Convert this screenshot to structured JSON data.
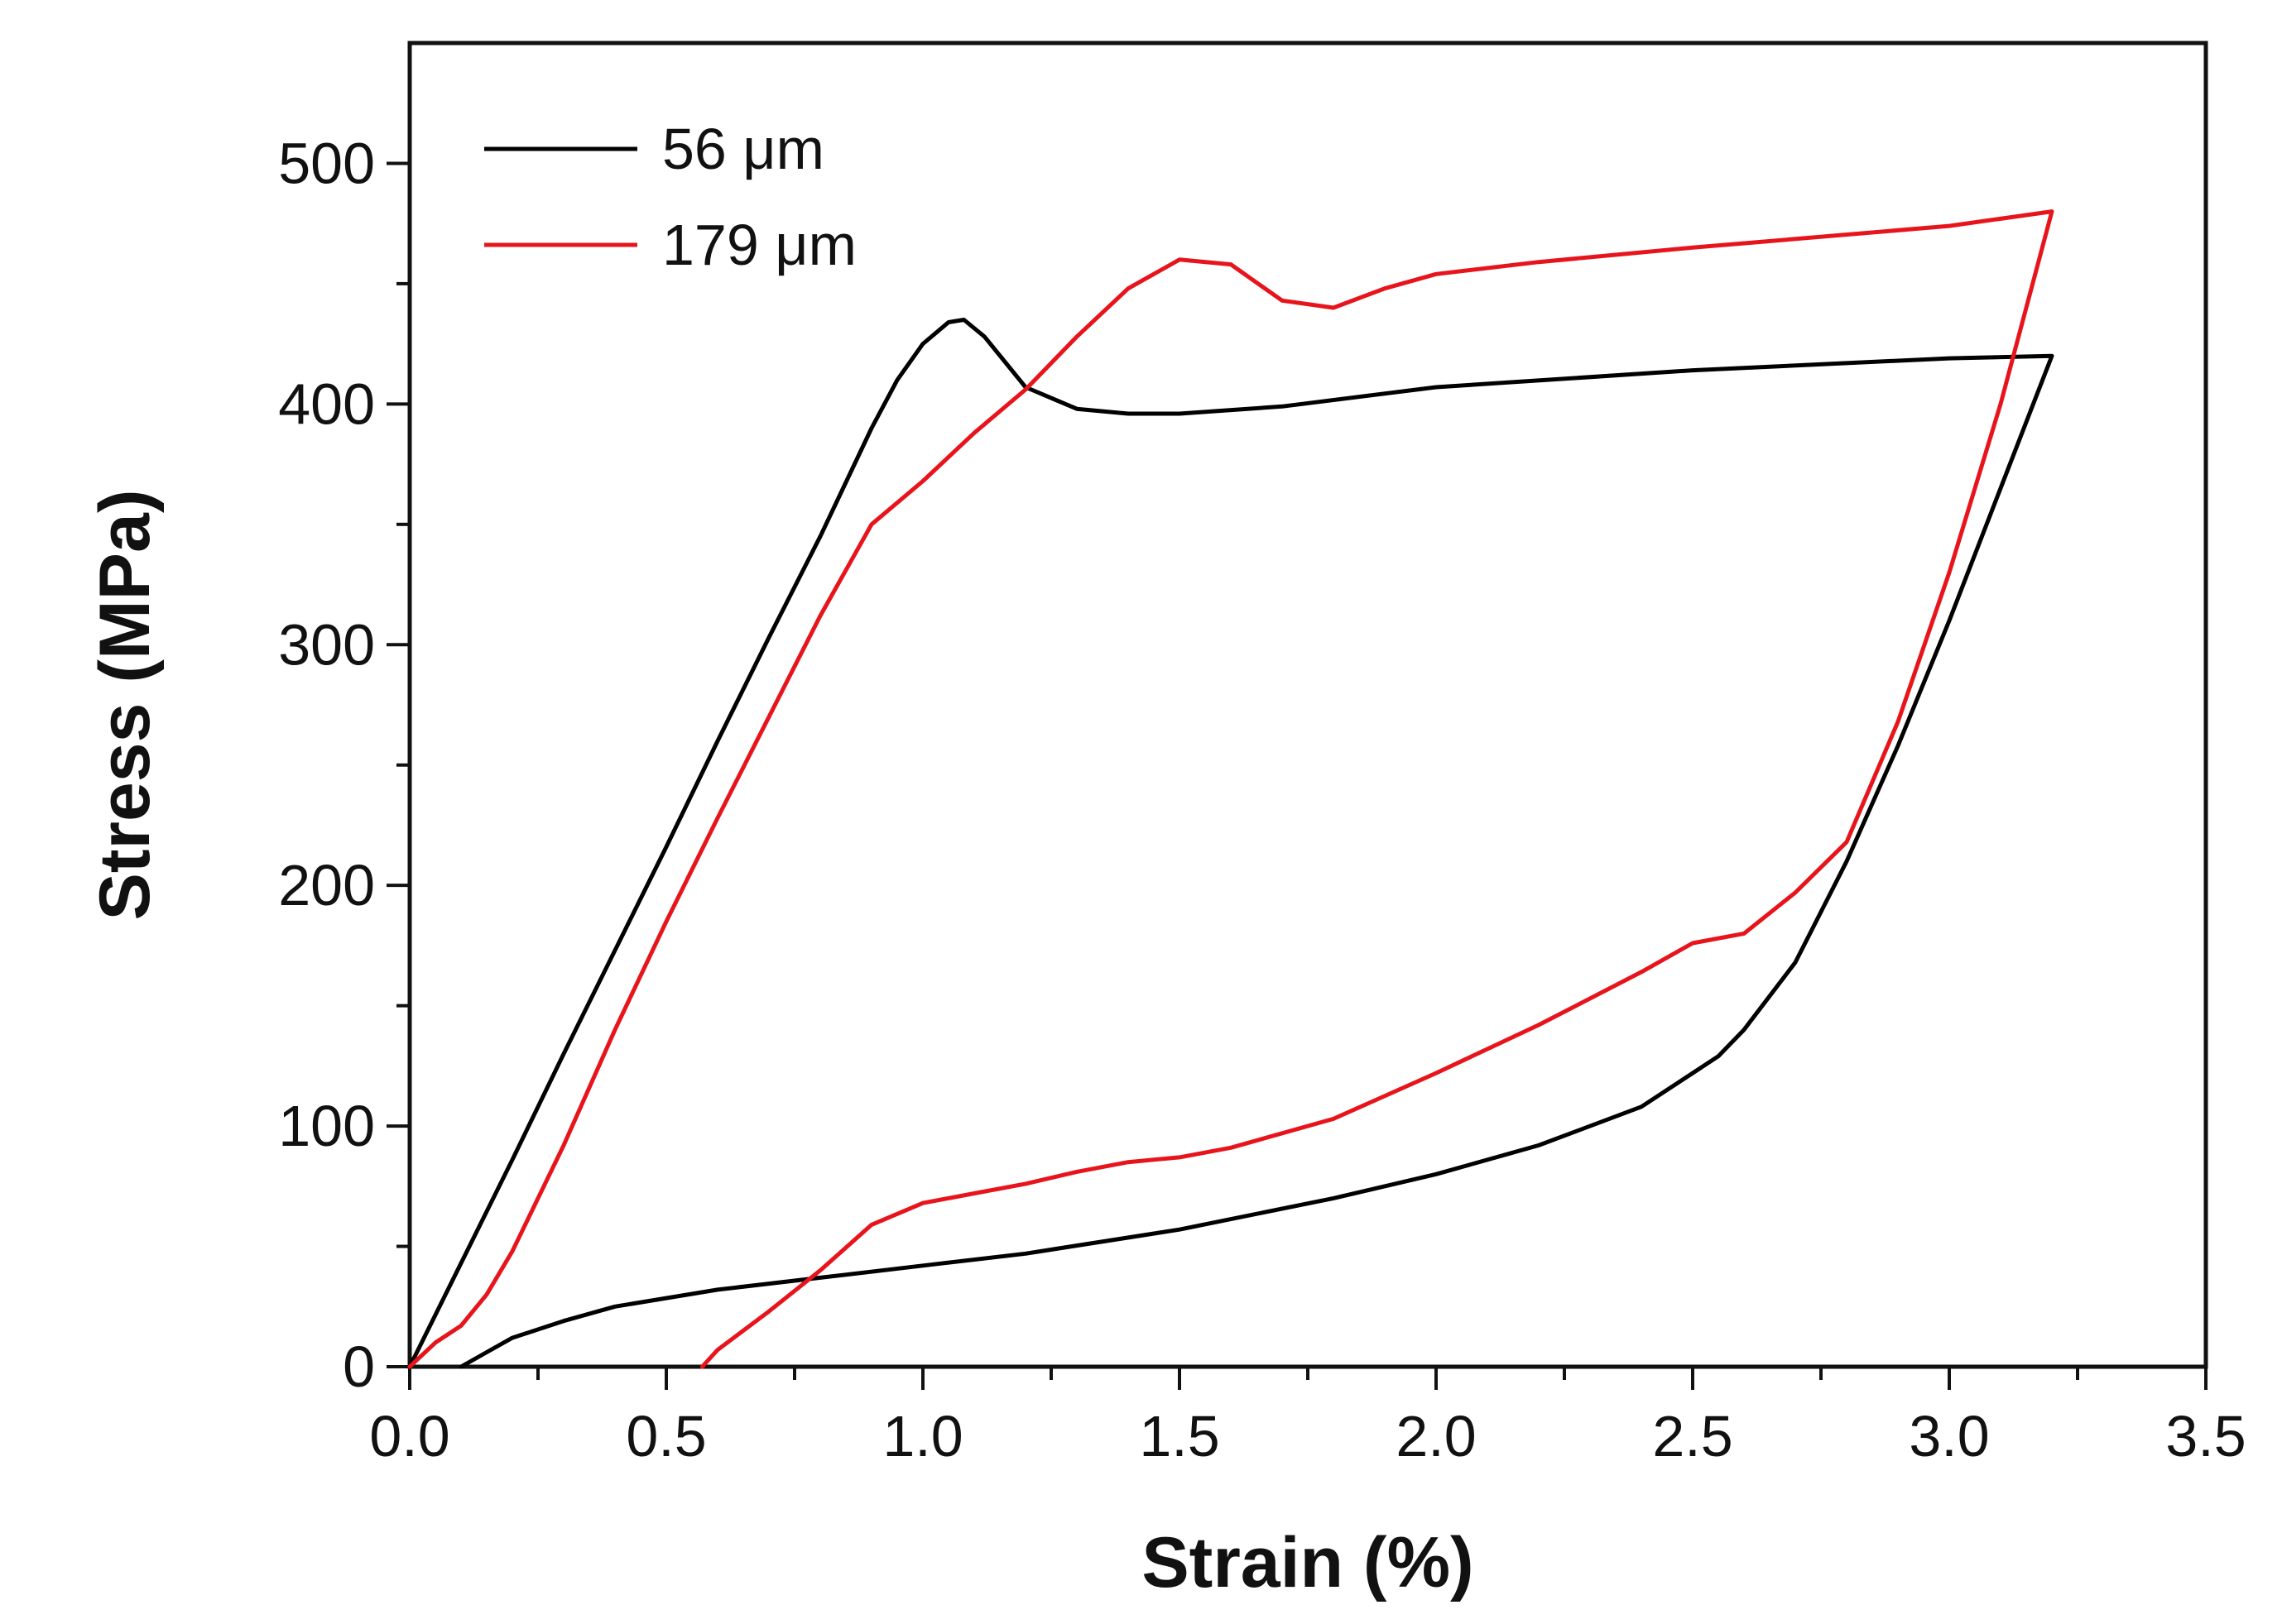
{
  "chart_data": {
    "type": "line",
    "title": "",
    "xlabel": "Strain (%)",
    "ylabel": "Stress (MPa)",
    "xlim": [
      0,
      3.5
    ],
    "ylim": [
      0,
      550
    ],
    "x_ticks": [
      0.0,
      0.5,
      1.0,
      1.5,
      2.0,
      2.5,
      3.0,
      3.5
    ],
    "x_tick_labels": [
      "0.0",
      "0.5",
      "1.0",
      "1.5",
      "2.0",
      "2.5",
      "3.0",
      "3.5"
    ],
    "y_ticks": [
      0,
      100,
      200,
      300,
      400,
      500
    ],
    "y_tick_labels": [
      "0",
      "100",
      "200",
      "300",
      "400",
      "500"
    ],
    "grid": false,
    "legend_position": "top-left",
    "series": [
      {
        "name": "56 μm",
        "color": "#000000",
        "x": [
          0.0,
          0.1,
          0.2,
          0.3,
          0.4,
          0.5,
          0.6,
          0.7,
          0.8,
          0.9,
          0.95,
          1.0,
          1.05,
          1.08,
          1.12,
          1.2,
          1.3,
          1.4,
          1.5,
          1.7,
          2.0,
          2.5,
          3.0,
          3.2,
          3.1,
          3.0,
          2.9,
          2.8,
          2.7,
          2.6,
          2.55,
          2.5,
          2.4,
          2.2,
          2.0,
          1.8,
          1.5,
          1.2,
          1.0,
          0.8,
          0.6,
          0.4,
          0.3,
          0.2,
          0.15,
          0.1
        ],
        "y": [
          0,
          43,
          86,
          130,
          173,
          216,
          260,
          303,
          345,
          390,
          410,
          425,
          434,
          435,
          428,
          407,
          398,
          396,
          396,
          399,
          407,
          414,
          419,
          420,
          365,
          310,
          258,
          210,
          168,
          140,
          129,
          122,
          108,
          92,
          80,
          70,
          57,
          47,
          42,
          37,
          32,
          25,
          19,
          12,
          6,
          0
        ]
      },
      {
        "name": "179 μm",
        "color": "#e8141c",
        "x": [
          0.0,
          0.05,
          0.1,
          0.15,
          0.2,
          0.3,
          0.4,
          0.5,
          0.6,
          0.7,
          0.8,
          0.9,
          1.0,
          1.1,
          1.2,
          1.3,
          1.4,
          1.5,
          1.6,
          1.7,
          1.8,
          1.9,
          2.0,
          2.2,
          2.5,
          3.0,
          3.2,
          3.15,
          3.1,
          3.0,
          2.9,
          2.8,
          2.7,
          2.6,
          2.5,
          2.4,
          2.2,
          2.0,
          1.8,
          1.6,
          1.5,
          1.4,
          1.3,
          1.2,
          1.1,
          1.0,
          0.9,
          0.8,
          0.7,
          0.6,
          0.57
        ],
        "y": [
          0,
          10,
          17,
          30,
          48,
          92,
          140,
          185,
          228,
          270,
          312,
          350,
          368,
          388,
          406,
          428,
          448,
          460,
          458,
          443,
          440,
          448,
          454,
          459,
          465,
          474,
          480,
          440,
          400,
          330,
          268,
          218,
          197,
          180,
          176,
          164,
          142,
          122,
          103,
          91,
          87,
          85,
          81,
          76,
          72,
          68,
          59,
          40,
          23,
          7,
          0
        ]
      }
    ]
  }
}
